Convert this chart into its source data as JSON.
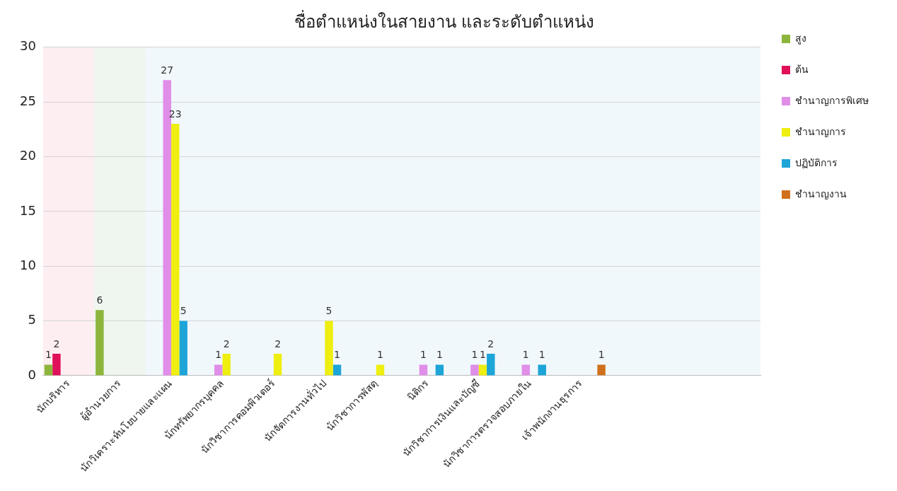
{
  "chart_data": {
    "type": "bar",
    "title": "ชื่อตำแหน่งในสายงาน และระดับตำแหน่ง",
    "categories": [
      "นักบริหาร",
      "ผู้อำนวยการ",
      "นักวิเคราะห์นโยบายและแผน",
      "นักทรัพยากรบุคคล",
      "นักวิชาการคอมพิวเตอร์",
      "นักจัดการงานทั่วไป",
      "นักวิชาการพัสดุ",
      "นิติกร",
      "นักวิชาการเงินและบัญชี",
      "นักวิชาการตรวจสอบภายใน",
      "เจ้าพนักงานธุรการ",
      null,
      null,
      null
    ],
    "series": [
      {
        "name": "สูง",
        "color": "#8db53c",
        "values": [
          1,
          6,
          null,
          null,
          null,
          null,
          null,
          null,
          null,
          null,
          null,
          null,
          null,
          null
        ]
      },
      {
        "name": "ต้น",
        "color": "#e0105a",
        "values": [
          2,
          null,
          null,
          null,
          null,
          null,
          null,
          null,
          null,
          null,
          null,
          null,
          null,
          null
        ]
      },
      {
        "name": "ชำนาญการพิเศษ",
        "color": "#e08ee8",
        "values": [
          null,
          null,
          27,
          1,
          null,
          null,
          null,
          1,
          1,
          1,
          null,
          null,
          null,
          null
        ]
      },
      {
        "name": "ชำนาญการ",
        "color": "#eeee10",
        "values": [
          null,
          null,
          23,
          2,
          2,
          5,
          1,
          null,
          1,
          null,
          null,
          null,
          null,
          null
        ]
      },
      {
        "name": "ปฏิบัติการ",
        "color": "#1ea5d8",
        "values": [
          null,
          null,
          5,
          null,
          null,
          1,
          null,
          1,
          2,
          1,
          null,
          null,
          null,
          null
        ]
      },
      {
        "name": "ชำนาญงาน",
        "color": "#d0701c",
        "values": [
          null,
          null,
          null,
          null,
          null,
          null,
          null,
          null,
          null,
          null,
          1,
          null,
          null,
          null
        ]
      }
    ],
    "bands": [
      {
        "axis": "x",
        "from": "นักบริหาร",
        "to": "นักบริหาร",
        "color": "#fdeef1"
      },
      {
        "axis": "x",
        "from": "ผู้อำนวยการ",
        "to": "ผู้อำนวยการ",
        "color": "#eef6ef"
      }
    ],
    "ylim": [
      0,
      30
    ],
    "yticks": [
      0,
      5,
      10,
      15,
      20,
      25,
      30
    ],
    "grid": "y",
    "legend": "right",
    "data_labels": true
  }
}
